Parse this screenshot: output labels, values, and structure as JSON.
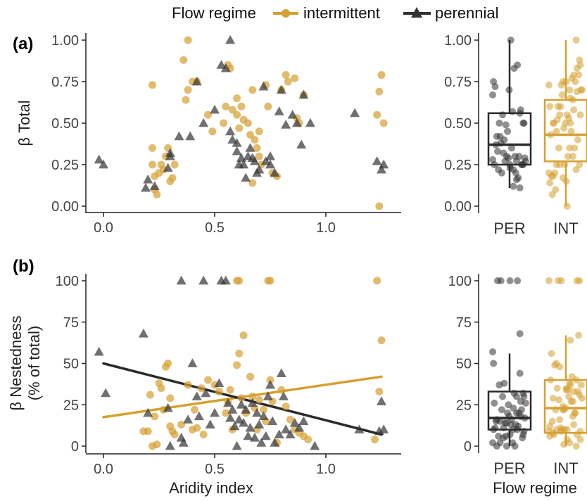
{
  "legend": {
    "title": "Flow regime",
    "items": [
      {
        "key": "INT",
        "label": "intermittent",
        "color": "#D4A030",
        "shape": "circle"
      },
      {
        "key": "PER",
        "label": "perennial",
        "color": "#333333",
        "shape": "triangle"
      }
    ]
  },
  "chart_data": [
    {
      "id": "a-scatter",
      "panel_label": "(a)",
      "type": "scatter",
      "xlabel": "",
      "ylabel": "β Total",
      "xlim": [
        -0.05,
        1.3
      ],
      "ylim": [
        0,
        1
      ],
      "xticks": [
        0.0,
        0.5,
        1.0
      ],
      "xtick_labels": [
        "0.0",
        "0.5",
        "1.0"
      ],
      "yticks": [
        0,
        0.25,
        0.5,
        0.75,
        1.0
      ],
      "ytick_labels": [
        "0.00",
        "0.25",
        "0.50",
        "0.75",
        "1.00"
      ],
      "series": [
        {
          "key": "INT",
          "name": "intermittent",
          "points": [
            [
              0.22,
              0.73
            ],
            [
              0.36,
              0.88
            ],
            [
              0.38,
              1.0
            ],
            [
              0.37,
              0.64
            ],
            [
              0.38,
              0.7
            ],
            [
              0.4,
              0.75
            ],
            [
              0.42,
              0.75
            ],
            [
              0.47,
              0.55
            ],
            [
              0.49,
              0.45
            ],
            [
              0.54,
              0.5
            ],
            [
              0.55,
              0.6
            ],
            [
              0.56,
              0.85
            ],
            [
              0.57,
              0.83
            ],
            [
              0.58,
              0.58
            ],
            [
              0.6,
              0.65
            ],
            [
              0.6,
              0.55
            ],
            [
              0.61,
              0.47
            ],
            [
              0.62,
              0.6
            ],
            [
              0.63,
              0.52
            ],
            [
              0.65,
              0.5
            ],
            [
              0.66,
              0.43
            ],
            [
              0.67,
              0.7
            ],
            [
              0.68,
              0.4
            ],
            [
              0.69,
              0.35
            ],
            [
              0.7,
              0.45
            ],
            [
              0.7,
              0.3
            ],
            [
              0.71,
              0.25
            ],
            [
              0.73,
              0.73
            ],
            [
              0.74,
              0.6
            ],
            [
              0.76,
              0.2
            ],
            [
              0.78,
              0.18
            ],
            [
              0.8,
              0.7
            ],
            [
              0.82,
              0.79
            ],
            [
              0.83,
              0.75
            ],
            [
              0.86,
              0.77
            ],
            [
              0.87,
              0.53
            ],
            [
              0.88,
              0.5
            ],
            [
              0.9,
              0.67
            ],
            [
              0.22,
              0.35
            ],
            [
              0.23,
              0.1
            ],
            [
              0.24,
              0.07
            ],
            [
              0.25,
              0.2
            ],
            [
              0.26,
              0.25
            ],
            [
              0.27,
              0.22
            ],
            [
              0.28,
              0.3
            ],
            [
              0.29,
              0.35
            ],
            [
              0.3,
              0.15
            ],
            [
              0.31,
              0.17
            ],
            [
              0.32,
              0.25
            ],
            [
              0.22,
              0.25
            ],
            [
              0.23,
              0.18
            ],
            [
              0.67,
              0.14
            ],
            [
              1.23,
              0.55
            ],
            [
              1.24,
              0.69
            ],
            [
              1.25,
              0.79
            ],
            [
              1.26,
              0.5
            ],
            [
              1.24,
              0.0
            ]
          ]
        },
        {
          "key": "PER",
          "name": "perennial",
          "points": [
            [
              -0.02,
              0.28
            ],
            [
              0.0,
              0.25
            ],
            [
              0.19,
              0.11
            ],
            [
              0.2,
              0.16
            ],
            [
              0.23,
              0.12
            ],
            [
              0.29,
              0.23
            ],
            [
              0.3,
              0.3
            ],
            [
              0.3,
              0.32
            ],
            [
              0.34,
              0.42
            ],
            [
              0.39,
              0.42
            ],
            [
              0.42,
              0.75
            ],
            [
              0.45,
              0.5
            ],
            [
              0.5,
              0.58
            ],
            [
              0.53,
              0.85
            ],
            [
              0.55,
              0.83
            ],
            [
              0.57,
              1.0
            ],
            [
              0.57,
              0.45
            ],
            [
              0.58,
              0.4
            ],
            [
              0.6,
              0.38
            ],
            [
              0.6,
              0.33
            ],
            [
              0.61,
              0.25
            ],
            [
              0.62,
              0.29
            ],
            [
              0.63,
              0.25
            ],
            [
              0.64,
              0.17
            ],
            [
              0.65,
              0.3
            ],
            [
              0.66,
              0.35
            ],
            [
              0.67,
              0.29
            ],
            [
              0.68,
              0.27
            ],
            [
              0.69,
              0.2
            ],
            [
              0.7,
              0.22
            ],
            [
              0.72,
              0.72
            ],
            [
              0.73,
              0.27
            ],
            [
              0.75,
              0.25
            ],
            [
              0.75,
              0.3
            ],
            [
              0.77,
              0.2
            ],
            [
              0.79,
              0.57
            ],
            [
              0.8,
              0.7
            ],
            [
              0.82,
              0.49
            ],
            [
              0.85,
              0.55
            ],
            [
              0.87,
              0.5
            ],
            [
              0.89,
              0.37
            ],
            [
              0.9,
              0.67
            ],
            [
              0.93,
              0.5
            ],
            [
              1.13,
              0.56
            ],
            [
              1.23,
              0.27
            ],
            [
              1.25,
              0.22
            ],
            [
              1.26,
              0.25
            ]
          ]
        }
      ]
    },
    {
      "id": "a-box",
      "type": "box",
      "xlabel": "",
      "ylabel": "",
      "ylim": [
        0,
        1
      ],
      "yticks": [
        0,
        0.25,
        0.5,
        0.75,
        1.0
      ],
      "ytick_labels": [
        "0.00",
        "0.25",
        "0.50",
        "0.75",
        "1.00"
      ],
      "categories": [
        "PER",
        "INT"
      ],
      "boxes": [
        {
          "key": "PER",
          "q1": 0.25,
          "median": 0.37,
          "q3": 0.56,
          "whisker_low": 0.11,
          "whisker_high": 1.0
        },
        {
          "key": "INT",
          "q1": 0.27,
          "median": 0.43,
          "q3": 0.64,
          "whisker_low": 0.0,
          "whisker_high": 1.0
        }
      ]
    },
    {
      "id": "b-scatter",
      "panel_label": "(b)",
      "type": "scatter",
      "xlabel": "Aridity index",
      "ylabel_lines": [
        "β Nestedness",
        "(% of total)"
      ],
      "xlim": [
        -0.05,
        1.3
      ],
      "ylim": [
        0,
        100
      ],
      "xticks": [
        0.0,
        0.5,
        1.0
      ],
      "xtick_labels": [
        "0.0",
        "0.5",
        "1.0"
      ],
      "yticks": [
        0,
        25,
        50,
        75,
        100
      ],
      "ytick_labels": [
        "0",
        "25",
        "50",
        "75",
        "100"
      ],
      "series": [
        {
          "key": "INT",
          "name": "intermittent",
          "points": [
            [
              0.2,
              9
            ],
            [
              0.21,
              31
            ],
            [
              0.22,
              0
            ],
            [
              0.23,
              18
            ],
            [
              0.25,
              38
            ],
            [
              0.26,
              35
            ],
            [
              0.27,
              22
            ],
            [
              0.28,
              48
            ],
            [
              0.29,
              50
            ],
            [
              0.3,
              29
            ],
            [
              0.3,
              12
            ],
            [
              0.31,
              9
            ],
            [
              0.32,
              7
            ],
            [
              0.35,
              13
            ],
            [
              0.38,
              37
            ],
            [
              0.4,
              10
            ],
            [
              0.41,
              22
            ],
            [
              0.42,
              11
            ],
            [
              0.44,
              35
            ],
            [
              0.45,
              7
            ],
            [
              0.47,
              40
            ],
            [
              0.5,
              37
            ],
            [
              0.52,
              33
            ],
            [
              0.55,
              20
            ],
            [
              0.56,
              27
            ],
            [
              0.57,
              34
            ],
            [
              0.58,
              10
            ],
            [
              0.6,
              100
            ],
            [
              0.61,
              100
            ],
            [
              0.6,
              49
            ],
            [
              0.61,
              56
            ],
            [
              0.62,
              29
            ],
            [
              0.63,
              67
            ],
            [
              0.64,
              20
            ],
            [
              0.66,
              42
            ],
            [
              0.67,
              30
            ],
            [
              0.68,
              23
            ],
            [
              0.69,
              10
            ],
            [
              0.7,
              28
            ],
            [
              0.72,
              22
            ],
            [
              0.73,
              15
            ],
            [
              0.74,
              100
            ],
            [
              0.75,
              100
            ],
            [
              0.75,
              40
            ],
            [
              0.76,
              27
            ],
            [
              0.78,
              2
            ],
            [
              0.8,
              34
            ],
            [
              0.82,
              24
            ],
            [
              0.84,
              16
            ],
            [
              0.86,
              10
            ],
            [
              0.88,
              8
            ],
            [
              0.9,
              6
            ],
            [
              0.92,
              4
            ],
            [
              1.23,
              100
            ],
            [
              1.24,
              33
            ],
            [
              1.25,
              64
            ],
            [
              1.22,
              4
            ],
            [
              0.24,
              1
            ],
            [
              0.18,
              9
            ]
          ]
        },
        {
          "key": "PER",
          "name": "perennial",
          "points": [
            [
              -0.02,
              57
            ],
            [
              0.01,
              32
            ],
            [
              0.18,
              68
            ],
            [
              0.2,
              20
            ],
            [
              0.29,
              23
            ],
            [
              0.35,
              100
            ],
            [
              0.3,
              0
            ],
            [
              0.35,
              5
            ],
            [
              0.36,
              2
            ],
            [
              0.38,
              16
            ],
            [
              0.4,
              50
            ],
            [
              0.42,
              30
            ],
            [
              0.43,
              18
            ],
            [
              0.45,
              100
            ],
            [
              0.46,
              32
            ],
            [
              0.48,
              13
            ],
            [
              0.5,
              20
            ],
            [
              0.52,
              38
            ],
            [
              0.53,
              100
            ],
            [
              0.55,
              100
            ],
            [
              0.56,
              26
            ],
            [
              0.57,
              17
            ],
            [
              0.58,
              22
            ],
            [
              0.59,
              12
            ],
            [
              0.6,
              0
            ],
            [
              0.61,
              16
            ],
            [
              0.62,
              25
            ],
            [
              0.63,
              14
            ],
            [
              0.64,
              22
            ],
            [
              0.65,
              6
            ],
            [
              0.66,
              11
            ],
            [
              0.67,
              26
            ],
            [
              0.68,
              5
            ],
            [
              0.69,
              20
            ],
            [
              0.7,
              13
            ],
            [
              0.71,
              2
            ],
            [
              0.72,
              18
            ],
            [
              0.73,
              6
            ],
            [
              0.74,
              30
            ],
            [
              0.75,
              37
            ],
            [
              0.76,
              15
            ],
            [
              0.77,
              2
            ],
            [
              0.79,
              7
            ],
            [
              0.8,
              44
            ],
            [
              0.81,
              30
            ],
            [
              0.82,
              10
            ],
            [
              0.84,
              7
            ],
            [
              0.86,
              14
            ],
            [
              0.88,
              11
            ],
            [
              0.9,
              15
            ],
            [
              0.95,
              0
            ],
            [
              1.15,
              10
            ],
            [
              1.24,
              9
            ],
            [
              1.25,
              27
            ],
            [
              1.26,
              10
            ]
          ]
        }
      ],
      "trend_lines": [
        {
          "key": "INT",
          "x": [
            0.0,
            1.25
          ],
          "y": [
            17.5,
            42
          ]
        },
        {
          "key": "PER",
          "x": [
            0.0,
            1.25
          ],
          "y": [
            50,
            7
          ]
        }
      ]
    },
    {
      "id": "b-box",
      "type": "box",
      "xlabel": "Flow regime",
      "ylabel": "",
      "ylim": [
        0,
        100
      ],
      "yticks": [
        0,
        25,
        50,
        75,
        100
      ],
      "ytick_labels": [
        "0",
        "25",
        "50",
        "75",
        "100"
      ],
      "categories": [
        "PER",
        "INT"
      ],
      "boxes": [
        {
          "key": "PER",
          "q1": 10,
          "median": 17,
          "q3": 33,
          "whisker_low": 0,
          "whisker_high": 56
        },
        {
          "key": "INT",
          "q1": 8,
          "median": 23,
          "q3": 40,
          "whisker_low": 0,
          "whisker_high": 67
        }
      ]
    }
  ]
}
